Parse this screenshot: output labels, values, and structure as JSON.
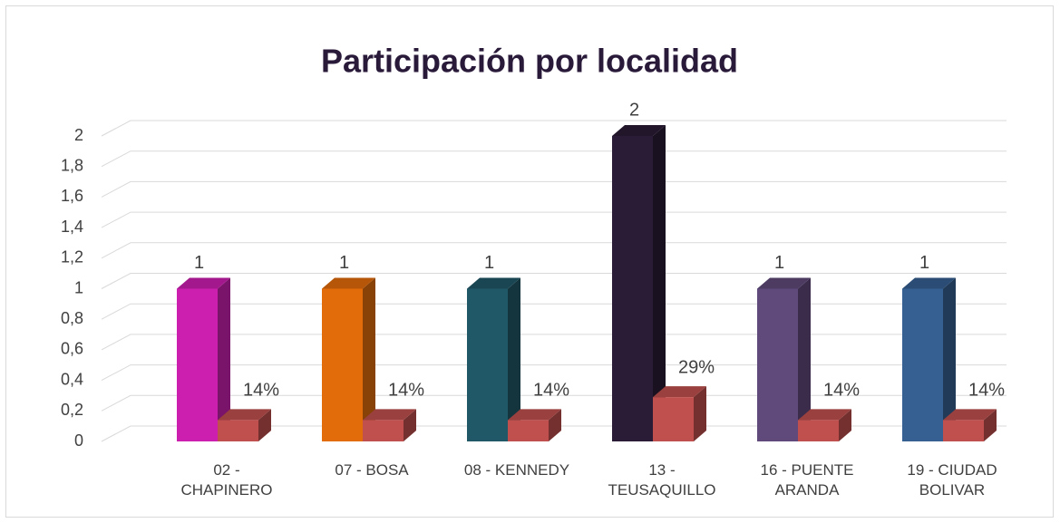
{
  "chart_data": {
    "type": "bar3d",
    "title": "Participación por localidad",
    "categories": [
      "02 - CHAPINERO",
      "07 - BOSA",
      "08 - KENNEDY",
      "13 - TEUSAQUILLO",
      "16 - PUENTE ARANDA",
      "19 - CIUDAD BOLIVAR"
    ],
    "series": [
      {
        "colors": [
          "#cc1fb0",
          "#e36c0a",
          "#215868",
          "#2a1c36",
          "#604a7b",
          "#366092"
        ],
        "values": [
          1,
          1,
          1,
          2,
          1,
          1
        ]
      },
      {
        "color": "#c0504d",
        "values": [
          0.14,
          0.14,
          0.14,
          0.29,
          0.14,
          0.14
        ],
        "value_labels": [
          "14%",
          "14%",
          "14%",
          "29%",
          "14%",
          "14%"
        ]
      }
    ],
    "ylim": [
      0,
      2
    ],
    "yticks": [
      0,
      {
        "value": 0.2,
        "label": "0,2"
      },
      {
        "value": 0.4,
        "label": "0,4"
      },
      {
        "value": 0.6,
        "label": "0,6"
      },
      {
        "value": 0.8,
        "label": "0,8"
      },
      1,
      {
        "value": 1.2,
        "label": "1,2"
      },
      {
        "value": 1.4,
        "label": "1,4"
      },
      {
        "value": 1.6,
        "label": "1,6"
      },
      {
        "value": 1.8,
        "label": "1,8"
      },
      2
    ],
    "grid": true
  }
}
